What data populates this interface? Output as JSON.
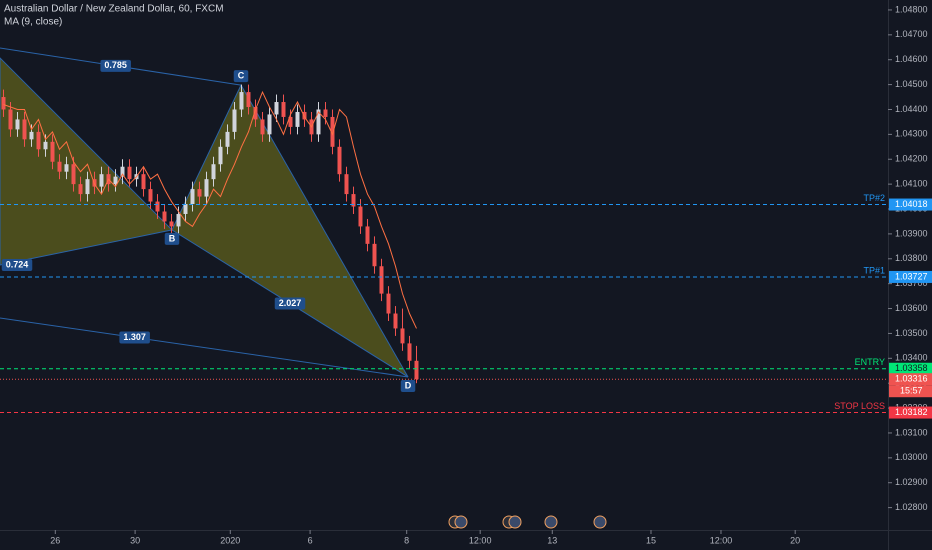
{
  "chart_data": {
    "type": "candlestick",
    "title": "Australian Dollar / New Zealand Dollar, 60, FXCM",
    "up_color": "#d1d4dc",
    "down_color": "#ef5350",
    "open": [
      1.0445,
      1.044,
      1.0432,
      1.0436,
      1.0428,
      1.0431,
      1.0424,
      1.0427,
      1.0419,
      1.0415,
      1.0418,
      1.041,
      1.0406,
      1.0412,
      1.0409,
      1.0414,
      1.041,
      1.0413,
      1.0417,
      1.0412,
      1.0414,
      1.0408,
      1.0403,
      1.0399,
      1.0395,
      1.0393,
      1.0398,
      1.0402,
      1.0408,
      1.0405,
      1.0412,
      1.0418,
      1.0425,
      1.0431,
      1.044,
      1.0447,
      1.0441,
      1.0436,
      1.043,
      1.0438,
      1.0443,
      1.0437,
      1.0433,
      1.0439,
      1.0436,
      1.043,
      1.044,
      1.0437,
      1.0425,
      1.0414,
      1.0406,
      1.0401,
      1.0393,
      1.0386,
      1.0377,
      1.0366,
      1.0358,
      1.0352,
      1.0346,
      1.0339
    ],
    "high": [
      1.0448,
      1.0443,
      1.0439,
      1.0439,
      1.0434,
      1.0434,
      1.043,
      1.043,
      1.0422,
      1.0421,
      1.0421,
      1.0413,
      1.0415,
      1.0415,
      1.0417,
      1.0417,
      1.0416,
      1.042,
      1.042,
      1.0417,
      1.0417,
      1.0411,
      1.0406,
      1.0402,
      1.0398,
      1.0401,
      1.0405,
      1.0411,
      1.0411,
      1.0415,
      1.0421,
      1.0428,
      1.0434,
      1.0443,
      1.045,
      1.045,
      1.0444,
      1.0439,
      1.0441,
      1.0446,
      1.0446,
      1.044,
      1.0442,
      1.0442,
      1.0439,
      1.0443,
      1.0443,
      1.044,
      1.0428,
      1.0417,
      1.0409,
      1.0404,
      1.0396,
      1.0389,
      1.038,
      1.0369,
      1.0361,
      1.036,
      1.0349,
      1.0345
    ],
    "low": [
      1.0437,
      1.0429,
      1.0429,
      1.0425,
      1.0425,
      1.0421,
      1.0421,
      1.0416,
      1.0412,
      1.0412,
      1.0407,
      1.0403,
      1.0403,
      1.0406,
      1.0406,
      1.0407,
      1.0407,
      1.041,
      1.0409,
      1.0409,
      1.0405,
      1.04,
      1.0396,
      1.0392,
      1.039,
      1.039,
      1.0395,
      1.0399,
      1.0402,
      1.0402,
      1.0409,
      1.0415,
      1.0422,
      1.0428,
      1.0437,
      1.0438,
      1.0433,
      1.0427,
      1.0427,
      1.0435,
      1.0434,
      1.043,
      1.043,
      1.0433,
      1.0427,
      1.0427,
      1.0434,
      1.0422,
      1.0411,
      1.0403,
      1.0398,
      1.039,
      1.0383,
      1.0374,
      1.0363,
      1.0355,
      1.0349,
      1.0343,
      1.0336,
      1.033
    ],
    "close": [
      1.044,
      1.0432,
      1.0436,
      1.0428,
      1.0431,
      1.0424,
      1.0427,
      1.0419,
      1.0415,
      1.0418,
      1.041,
      1.0406,
      1.0412,
      1.0409,
      1.0414,
      1.041,
      1.0413,
      1.0417,
      1.0412,
      1.0414,
      1.0408,
      1.0403,
      1.0399,
      1.0395,
      1.0393,
      1.0398,
      1.0402,
      1.0408,
      1.0405,
      1.0412,
      1.0418,
      1.0425,
      1.0431,
      1.044,
      1.0447,
      1.0441,
      1.0436,
      1.043,
      1.0438,
      1.0443,
      1.0437,
      1.0433,
      1.0439,
      1.0436,
      1.043,
      1.044,
      1.0437,
      1.0425,
      1.0414,
      1.0406,
      1.0401,
      1.0393,
      1.0386,
      1.0377,
      1.0366,
      1.0358,
      1.0352,
      1.0346,
      1.0339,
      1.03316
    ],
    "series": [
      {
        "name": "MA (9, close)",
        "color": "#ff7043",
        "values": [
          1.0442,
          1.0441,
          1.044,
          1.044,
          1.0432,
          1.0436,
          1.0428,
          1.0431,
          1.0424,
          1.0427,
          1.0419,
          1.0415,
          1.0418,
          1.041,
          1.0406,
          1.0412,
          1.0409,
          1.0414,
          1.041,
          1.0413,
          1.0417,
          1.0412,
          1.0414,
          1.0408,
          1.0403,
          1.0399,
          1.0395,
          1.0393,
          1.0398,
          1.0402,
          1.0408,
          1.0405,
          1.0412,
          1.0418,
          1.0425,
          1.0431,
          1.044,
          1.0447,
          1.0441,
          1.0436,
          1.043,
          1.0438,
          1.0443,
          1.0437,
          1.0433,
          1.0439,
          1.0436,
          1.043,
          1.044,
          1.0437,
          1.0425,
          1.0414,
          1.0406,
          1.0401,
          1.0393,
          1.0386,
          1.0377,
          1.0366,
          1.0358,
          1.0352
        ]
      }
    ],
    "xlim": [
      -0.5,
      126.36
    ],
    "ylim": [
      1.0271,
      1.0484
    ],
    "xticks": [
      {
        "value": 7.4,
        "label": "26"
      },
      {
        "value": 18.8,
        "label": "30"
      },
      {
        "value": 32.4,
        "label": "2020"
      },
      {
        "value": 43.8,
        "label": "6"
      },
      {
        "value": 57.6,
        "label": "8"
      },
      {
        "value": 68.1,
        "label": "12:00"
      },
      {
        "value": 78.4,
        "label": "13"
      },
      {
        "value": 92.5,
        "label": "15"
      },
      {
        "value": 102.5,
        "label": "12:00"
      },
      {
        "value": 113.1,
        "label": "20"
      }
    ],
    "yticks": [
      {
        "value": 1.028,
        "label": "1.02800"
      },
      {
        "value": 1.029,
        "label": "1.02900"
      },
      {
        "value": 1.03,
        "label": "1.03000"
      },
      {
        "value": 1.031,
        "label": "1.03100"
      },
      {
        "value": 1.032,
        "label": "1.03200"
      },
      {
        "value": 1.033,
        "label": "1.03300"
      },
      {
        "value": 1.034,
        "label": "1.03400"
      },
      {
        "value": 1.035,
        "label": "1.03500"
      },
      {
        "value": 1.036,
        "label": "1.03600"
      },
      {
        "value": 1.037,
        "label": "1.03700"
      },
      {
        "value": 1.038,
        "label": "1.03800"
      },
      {
        "value": 1.039,
        "label": "1.03900"
      },
      {
        "value": 1.04,
        "label": "1.04000"
      },
      {
        "value": 1.041,
        "label": "1.04100"
      },
      {
        "value": 1.042,
        "label": "1.04200"
      },
      {
        "value": 1.043,
        "label": "1.04300"
      },
      {
        "value": 1.044,
        "label": "1.04400"
      },
      {
        "value": 1.045,
        "label": "1.04500"
      },
      {
        "value": 1.046,
        "label": "1.04600"
      },
      {
        "value": 1.047,
        "label": "1.04700"
      },
      {
        "value": 1.048,
        "label": "1.04800"
      }
    ],
    "levels": [
      {
        "name": "TP#2",
        "value": 1.04018,
        "color": "#2196f3"
      },
      {
        "name": "TP#1",
        "value": 1.03727,
        "color": "#2196f3"
      },
      {
        "name": "ENTRY",
        "value": 1.03358,
        "color": "#00e676"
      },
      {
        "value": 1.03316,
        "color": "#ef5350",
        "countdown": "15:57"
      },
      {
        "name": "STOP LOSS",
        "value": 1.03182,
        "color": "#f23645"
      }
    ],
    "pattern": {
      "fill": "#7a7a1a",
      "line_color": "#2a63a8",
      "points": [
        {
          "x": -0.5,
          "y": 1.04607
        },
        {
          "x": -0.5,
          "y": 1.03775
        },
        {
          "x": 24.07,
          "y": 1.03916,
          "label": "B"
        },
        {
          "x": 33.93,
          "y": 1.04498,
          "label": "C"
        },
        {
          "x": 57.79,
          "y": 1.03325,
          "label": "D"
        },
        {
          "x": -0.5,
          "y": 1.04647
        },
        {
          "x": -0.5,
          "y": 1.03562
        }
      ],
      "ratios": [
        0.785,
        0.724,
        2.027,
        1.307
      ]
    }
  }
}
